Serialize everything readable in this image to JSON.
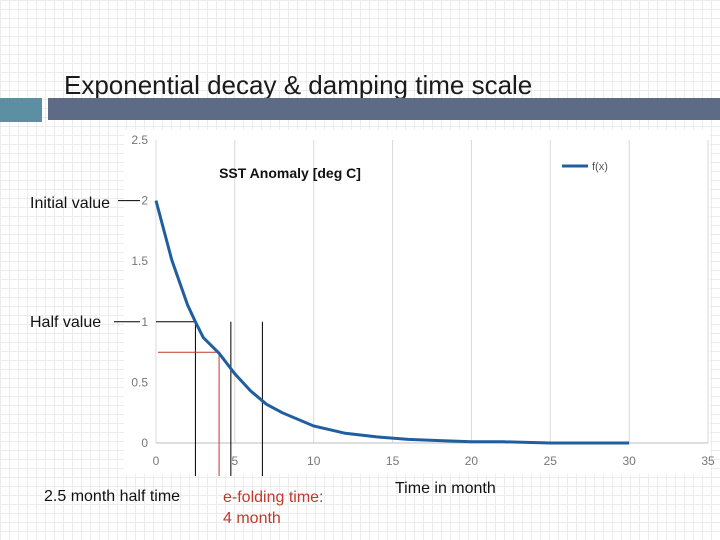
{
  "slide": {
    "title": "Exponential decay & damping time scale"
  },
  "annotations": {
    "initial_value": "Initial value",
    "half_value": "Half value",
    "half_time": "2.5 month half time",
    "efold_line1": "e-folding time:",
    "efold_line2": "4 month",
    "time_label": "Time in month"
  },
  "colors": {
    "curve": "#1f5fa0",
    "efold_marker": "#c0392b",
    "bar_accent": "#5b8fa1",
    "bar_dark": "#5e6b86"
  },
  "chart_data": {
    "type": "line",
    "title": "SST Anomaly [deg C]",
    "xlabel": "Time in month",
    "ylabel": "",
    "xlim": [
      0,
      35
    ],
    "ylim": [
      0,
      2.5
    ],
    "x_ticks": [
      0,
      5,
      10,
      15,
      20,
      25,
      30,
      35
    ],
    "y_ticks": [
      0,
      0.5,
      1,
      1.5,
      2,
      2.5
    ],
    "grid": "vertical",
    "legend": "top-right",
    "series": [
      {
        "name": "f(x)",
        "x": [
          0,
          1,
          2,
          2.5,
          3,
          4,
          5,
          6,
          7,
          8,
          10,
          12,
          14,
          16,
          18,
          20,
          22,
          25,
          28,
          30
        ],
        "y": [
          2.0,
          1.51,
          1.14,
          1.0,
          0.87,
          0.74,
          0.57,
          0.43,
          0.32,
          0.25,
          0.14,
          0.08,
          0.05,
          0.03,
          0.02,
          0.01,
          0.01,
          0.0,
          0.0,
          0.0
        ]
      }
    ],
    "markers": [
      {
        "name": "half-time",
        "x": 2.5,
        "y": 1.0
      },
      {
        "name": "e-folding",
        "x": 4,
        "y": 0.74
      },
      {
        "name": "x5",
        "x": 5,
        "y": 1.0
      },
      {
        "name": "x7",
        "x": 7,
        "y": 1.0
      }
    ]
  }
}
